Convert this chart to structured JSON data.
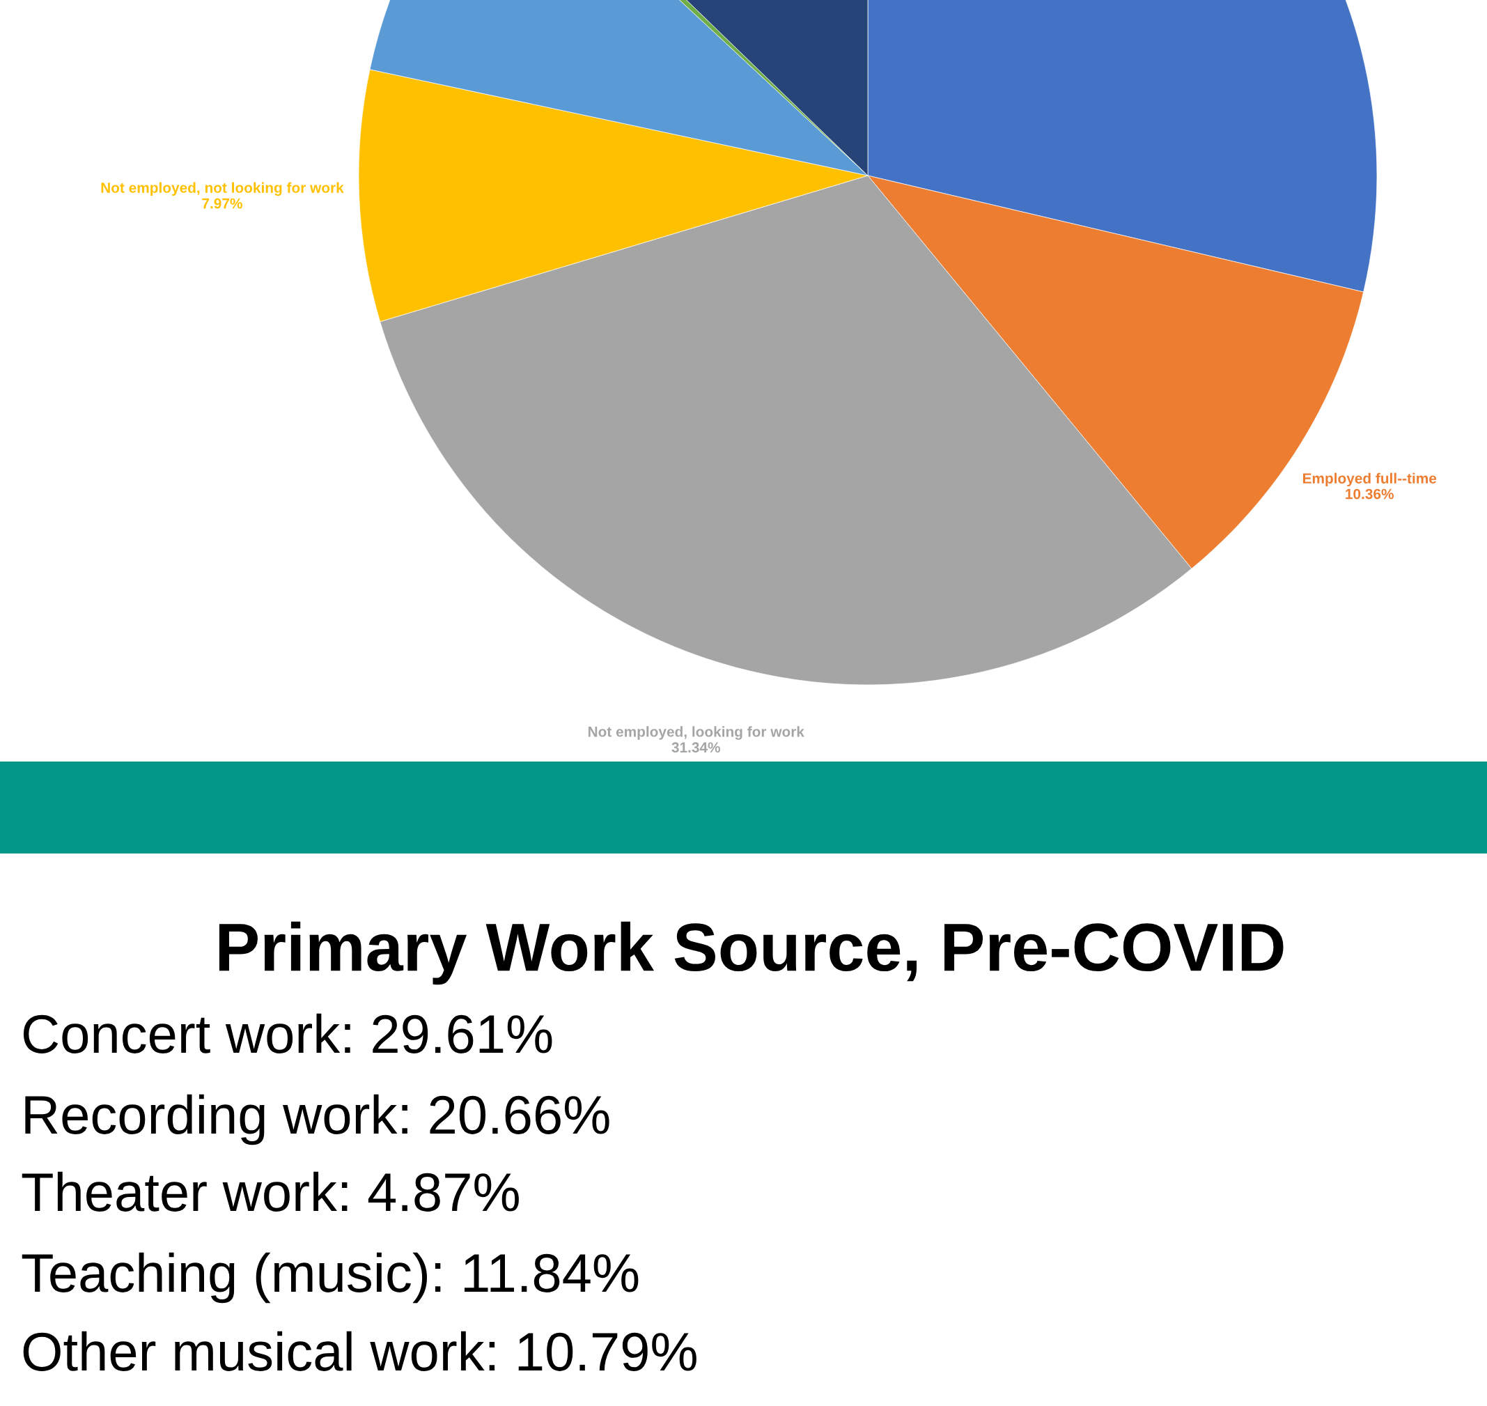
{
  "chart_data": [
    {
      "type": "pie",
      "categories": [
        null,
        "Employed full--time",
        "Not employed, looking for work",
        "Not employed, not looking for work",
        null,
        null,
        null
      ],
      "values": [
        28.67,
        10.36,
        31.34,
        7.97,
        8.6,
        0.3,
        12.76
      ],
      "colors": [
        "#4472c4",
        "#ed7d31",
        "#a5a5a5",
        "#ffc000",
        "#5b9bd5",
        "#70ad47",
        "#264478"
      ],
      "value_labels": [
        null,
        "10.36%",
        "31.34%",
        "7.97%",
        null,
        null,
        null
      ]
    },
    {
      "type": "other",
      "title": "Primary Work Source, Pre-COVID",
      "annotations": [
        "Concert work: 29.61%",
        "Recording work: 20.66%",
        "Theater work: 4.87%",
        "Teaching (music): 11.84%",
        "Other musical work: 10.79%"
      ]
    }
  ]
}
